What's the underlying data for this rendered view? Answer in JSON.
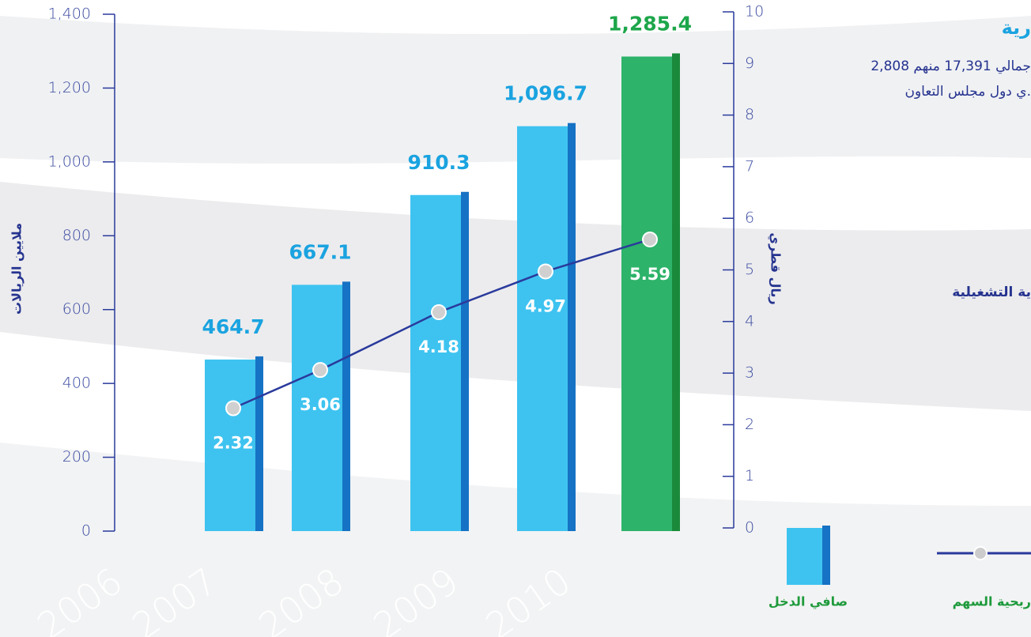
{
  "chart_data": {
    "type": "bar",
    "y_label": "ملايين الريالات",
    "y2_label": "ريال قطري",
    "categories": [
      "2006",
      "2007",
      "2008",
      "2009",
      "2010"
    ],
    "series": [
      {
        "name": "صافي الدخل",
        "type": "bar",
        "colors": [
          "#3ec3f0",
          "#3ec3f0",
          "#3ec3f0",
          "#3ec3f0",
          "#2db36a"
        ],
        "label_colors": [
          "#1aa3e0",
          "#1aa3e0",
          "#1aa3e0",
          "#1aa3e0",
          "#1da64a"
        ],
        "values": [
          464.7,
          667.1,
          910.3,
          1096.7,
          1285.4
        ],
        "value_labels": [
          "464.7",
          "667.1",
          "910.3",
          "1,096.7",
          "1,285.4"
        ]
      },
      {
        "name": "ربحية السهم",
        "type": "line",
        "axis": "y2",
        "color": "#2a3a9c",
        "values": [
          2.32,
          3.06,
          4.18,
          4.97,
          5.59
        ]
      }
    ],
    "ylim": [
      0,
      1400
    ],
    "yticks": [
      0,
      200,
      400,
      600,
      800,
      {
        "value": 1000,
        "label": "1,000"
      },
      {
        "value": 1200,
        "label": "1,200"
      },
      {
        "value": 1400,
        "label": "1,400"
      }
    ],
    "y2lim": [
      0,
      10
    ],
    "y2ticks": [
      0,
      1,
      2,
      3,
      4,
      5,
      6,
      7,
      8,
      9,
      10
    ]
  },
  "side_text": {
    "title": "رية",
    "line1": "جمالي 17,391 منهم 2,808",
    "line2": "ي دول مجلس التعاون.",
    "line3": "ية التشغيلية"
  }
}
